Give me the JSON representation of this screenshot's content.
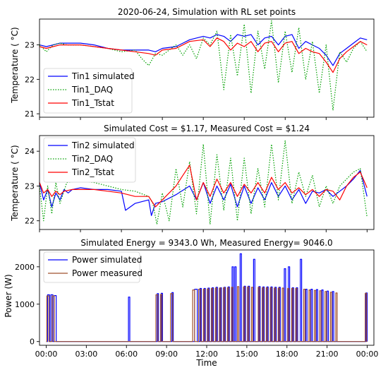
{
  "chart_data": [
    {
      "type": "line",
      "title": "2020-06-24, Simulation with RL set points",
      "ylabel": "Temperature ( °C)",
      "xlim": [
        0,
        24.5
      ],
      "ylim": [
        20.9,
        23.75
      ],
      "yticks": [
        21,
        22,
        23
      ],
      "legend_position": "lower-left",
      "series": [
        {
          "name": "Tin1 simulated",
          "color": "#0000ff",
          "style": "solid",
          "x": [
            0,
            0.5,
            1,
            1.5,
            2,
            3,
            4,
            5,
            6,
            7,
            8,
            8.5,
            9,
            10,
            11,
            12,
            12.5,
            13,
            13.5,
            14,
            14.5,
            15,
            15.5,
            16,
            16.5,
            17,
            17.5,
            18,
            18.5,
            19,
            19.5,
            20,
            20.5,
            21,
            21.5,
            22,
            22.5,
            23,
            23.5,
            24
          ],
          "y": [
            23.0,
            22.95,
            23.0,
            23.05,
            23.05,
            23.05,
            23.0,
            22.9,
            22.85,
            22.85,
            22.85,
            22.8,
            22.9,
            22.95,
            23.15,
            23.25,
            23.2,
            23.3,
            23.25,
            23.1,
            23.3,
            23.25,
            23.3,
            23.0,
            23.2,
            23.25,
            23.0,
            23.25,
            23.3,
            22.9,
            23.1,
            23.0,
            22.9,
            22.7,
            22.4,
            22.75,
            22.9,
            23.05,
            23.2,
            23.15
          ]
        },
        {
          "name": "Tin1_DAQ",
          "color": "#00a000",
          "style": "dotted",
          "x": [
            0,
            0.5,
            1,
            1.5,
            2,
            3,
            4,
            5,
            6,
            7,
            7.5,
            8,
            8.5,
            9,
            10,
            10.5,
            11,
            11.5,
            12,
            12.5,
            13,
            13.5,
            14,
            14.5,
            15,
            15.5,
            16,
            16.5,
            17,
            17.5,
            18,
            18.5,
            19,
            19.5,
            20,
            20.5,
            21,
            21.5,
            22,
            22.5,
            23,
            23.5,
            24
          ],
          "y": [
            23.0,
            22.8,
            23.0,
            23.05,
            23.0,
            23.0,
            22.95,
            22.9,
            22.8,
            22.85,
            22.6,
            22.4,
            22.75,
            22.7,
            23.0,
            22.7,
            23.0,
            22.6,
            23.2,
            23.0,
            23.4,
            21.7,
            23.3,
            22.1,
            23.6,
            21.6,
            23.4,
            22.3,
            23.7,
            21.9,
            23.4,
            22.2,
            23.5,
            22.0,
            23.1,
            21.6,
            23.0,
            21.1,
            22.8,
            22.5,
            22.9,
            23.1,
            22.8
          ]
        },
        {
          "name": "Tin1_Tstat",
          "color": "#ff0000",
          "style": "solid",
          "x": [
            0,
            0.5,
            1,
            1.5,
            2,
            3,
            4,
            5,
            6,
            7,
            8,
            8.5,
            9,
            10,
            11,
            12,
            12.5,
            13,
            13.5,
            14,
            14.5,
            15,
            15.5,
            16,
            16.5,
            17,
            17.5,
            18,
            18.5,
            19,
            19.5,
            20,
            20.5,
            21,
            21.5,
            22,
            22.5,
            23,
            23.5,
            24
          ],
          "y": [
            22.95,
            22.9,
            22.95,
            23.0,
            23.0,
            23.0,
            22.95,
            22.9,
            22.85,
            22.8,
            22.75,
            22.7,
            22.85,
            22.9,
            23.1,
            23.15,
            22.95,
            23.2,
            23.1,
            22.85,
            23.05,
            22.95,
            23.1,
            22.8,
            23.05,
            23.1,
            22.8,
            23.05,
            23.1,
            22.75,
            22.9,
            22.8,
            22.75,
            22.5,
            22.2,
            22.6,
            22.8,
            22.95,
            23.1,
            23.0
          ]
        }
      ]
    },
    {
      "type": "line",
      "title": "Simulated Cost = $1.17, Measured Cost = $1.24",
      "ylabel": "Temperature ( °C)",
      "xlim": [
        0,
        24.5
      ],
      "ylim": [
        21.75,
        24.45
      ],
      "yticks": [
        22,
        23,
        24
      ],
      "legend_position": "upper-left",
      "series": [
        {
          "name": "Tin2 simulated",
          "color": "#0000ff",
          "style": "solid",
          "x": [
            0,
            0.3,
            0.6,
            0.9,
            1.2,
            1.5,
            1.8,
            2.1,
            2.4,
            3,
            4,
            5,
            6,
            6.3,
            7,
            8,
            8.2,
            8.5,
            9,
            10,
            11,
            11.5,
            12,
            12.5,
            13,
            13.5,
            14,
            14.5,
            15,
            15.5,
            16,
            16.5,
            17,
            17.5,
            18,
            18.5,
            19,
            19.5,
            20,
            20.5,
            21,
            21.5,
            22,
            22.5,
            23,
            23.5,
            24
          ],
          "y": [
            23.1,
            22.6,
            22.9,
            22.4,
            22.8,
            22.6,
            22.9,
            22.8,
            22.9,
            22.95,
            22.9,
            22.9,
            22.85,
            22.3,
            22.5,
            22.6,
            22.15,
            22.5,
            22.55,
            22.75,
            23.0,
            22.6,
            23.1,
            22.5,
            23.0,
            22.6,
            23.05,
            22.4,
            23.0,
            22.5,
            22.95,
            22.6,
            23.1,
            22.7,
            23.0,
            22.6,
            22.9,
            22.5,
            22.85,
            22.8,
            22.9,
            22.7,
            22.85,
            23.0,
            23.2,
            23.45,
            22.7
          ]
        },
        {
          "name": "Tin2_DAQ",
          "color": "#00a000",
          "style": "dotted",
          "x": [
            0,
            0.3,
            0.6,
            0.9,
            1.2,
            1.5,
            2,
            3,
            4,
            5,
            6,
            7,
            8,
            8.3,
            8.6,
            9,
            9.5,
            10,
            10.5,
            11,
            11.5,
            12,
            12.5,
            13,
            13.5,
            14,
            14.5,
            15,
            15.5,
            16,
            16.5,
            17,
            17.5,
            18,
            18.5,
            19,
            19.5,
            20,
            20.5,
            21,
            21.5,
            22,
            22.5,
            23,
            23.5,
            24
          ],
          "y": [
            23.0,
            22.0,
            23.0,
            22.2,
            23.1,
            22.5,
            23.1,
            23.15,
            23.1,
            23.0,
            22.9,
            22.85,
            22.7,
            22.5,
            21.9,
            22.8,
            22.0,
            23.5,
            22.4,
            23.7,
            22.2,
            24.2,
            21.9,
            23.9,
            22.3,
            23.8,
            22.0,
            23.8,
            22.2,
            23.5,
            22.4,
            24.2,
            22.6,
            24.3,
            22.5,
            23.4,
            22.7,
            23.3,
            22.4,
            23.0,
            22.5,
            23.0,
            23.2,
            23.4,
            23.5,
            22.1
          ]
        },
        {
          "name": "Tin2_Tstat",
          "color": "#ff0000",
          "style": "solid",
          "x": [
            0,
            0.3,
            0.6,
            0.9,
            1.2,
            1.5,
            1.8,
            2.4,
            3,
            4,
            5,
            6,
            7,
            8,
            8.5,
            9,
            10,
            10.5,
            11,
            11.5,
            12,
            12.5,
            13,
            13.5,
            14,
            14.5,
            15,
            15.5,
            16,
            16.5,
            17,
            17.5,
            18,
            18.5,
            19,
            19.5,
            20,
            20.5,
            21,
            21.5,
            22,
            22.5,
            23,
            23.5,
            24
          ],
          "y": [
            23.1,
            22.8,
            22.9,
            22.7,
            22.85,
            22.75,
            22.85,
            22.9,
            22.9,
            22.9,
            22.85,
            22.8,
            22.7,
            22.7,
            22.4,
            22.6,
            23.0,
            23.3,
            23.6,
            22.6,
            23.1,
            22.7,
            23.2,
            22.8,
            23.1,
            22.7,
            23.05,
            22.8,
            23.1,
            22.8,
            23.25,
            22.9,
            23.1,
            22.8,
            22.95,
            22.75,
            22.9,
            22.7,
            22.9,
            22.85,
            22.6,
            23.0,
            23.25,
            23.4,
            22.95
          ]
        }
      ]
    },
    {
      "type": "line",
      "title": "Simulated Energy = 9343.0 Wh, Measured Energy= 9046.0",
      "ylabel": "Power (W)",
      "xlabel": "Time",
      "xlim": [
        -0.5,
        24.5
      ],
      "ylim": [
        -100,
        2450
      ],
      "yticks": [
        0,
        1000,
        2000
      ],
      "xtick_labels": [
        "00:00",
        "03:00",
        "06:00",
        "09:00",
        "12:00",
        "15:00",
        "18:00",
        "21:00",
        "00:00"
      ],
      "xtick_hours": [
        0,
        3,
        6,
        9,
        12,
        15,
        18,
        21,
        24
      ],
      "legend_position": "upper-left",
      "series": [
        {
          "name": "Power simulated",
          "color": "#0000ff",
          "style": "pulses",
          "pulses": [
            [
              0.1,
              0.25,
              1250
            ],
            [
              0.35,
              0.5,
              1250
            ],
            [
              0.6,
              0.75,
              1230
            ],
            [
              6.15,
              6.25,
              1190
            ],
            [
              8.3,
              8.4,
              1280
            ],
            [
              8.6,
              8.7,
              1290
            ],
            [
              9.4,
              9.5,
              1310
            ],
            [
              11.1,
              11.3,
              1400
            ],
            [
              11.5,
              11.6,
              1420
            ],
            [
              11.8,
              11.9,
              1420
            ],
            [
              12.1,
              12.2,
              1430
            ],
            [
              12.4,
              12.5,
              1440
            ],
            [
              12.7,
              12.8,
              1450
            ],
            [
              13.0,
              13.1,
              1440
            ],
            [
              13.3,
              13.4,
              1450
            ],
            [
              13.6,
              13.7,
              1460
            ],
            [
              13.9,
              14.0,
              2000
            ],
            [
              14.1,
              14.2,
              2000
            ],
            [
              14.5,
              14.6,
              2350
            ],
            [
              14.8,
              14.9,
              1480
            ],
            [
              15.1,
              15.2,
              1480
            ],
            [
              15.5,
              15.6,
              2200
            ],
            [
              15.9,
              16.0,
              1470
            ],
            [
              16.2,
              16.3,
              1460
            ],
            [
              16.5,
              16.6,
              1460
            ],
            [
              16.8,
              16.9,
              1460
            ],
            [
              17.1,
              17.2,
              1450
            ],
            [
              17.4,
              17.5,
              1450
            ],
            [
              17.8,
              17.9,
              1950
            ],
            [
              18.1,
              18.2,
              2000
            ],
            [
              18.4,
              18.5,
              1440
            ],
            [
              18.7,
              18.8,
              1440
            ],
            [
              19.0,
              19.1,
              2200
            ],
            [
              19.4,
              19.5,
              1400
            ],
            [
              19.8,
              19.9,
              1400
            ],
            [
              20.2,
              20.3,
              1390
            ],
            [
              20.6,
              20.7,
              1380
            ],
            [
              21.0,
              21.1,
              1350
            ],
            [
              21.4,
              21.5,
              1340
            ],
            [
              23.9,
              24.0,
              1300
            ]
          ]
        },
        {
          "name": "Power measured",
          "color": "#a0522d",
          "style": "pulses",
          "pulses": [
            [
              0.05,
              0.2,
              1220
            ],
            [
              0.45,
              0.6,
              1220
            ],
            [
              8.2,
              8.35,
              1250
            ],
            [
              8.55,
              8.65,
              1260
            ],
            [
              9.3,
              9.45,
              1280
            ],
            [
              10.95,
              11.1,
              1380
            ],
            [
              11.4,
              11.55,
              1400
            ],
            [
              11.75,
              11.85,
              1400
            ],
            [
              12.05,
              12.15,
              1410
            ],
            [
              12.35,
              12.45,
              1420
            ],
            [
              12.65,
              12.75,
              1430
            ],
            [
              12.95,
              13.05,
              1430
            ],
            [
              13.25,
              13.35,
              1440
            ],
            [
              13.55,
              13.65,
              1440
            ],
            [
              13.85,
              13.95,
              1450
            ],
            [
              14.3,
              14.4,
              1470
            ],
            [
              14.75,
              14.85,
              1460
            ],
            [
              15.05,
              15.15,
              1460
            ],
            [
              15.35,
              15.45,
              1450
            ],
            [
              15.85,
              15.95,
              1450
            ],
            [
              16.15,
              16.25,
              1440
            ],
            [
              16.45,
              16.55,
              1440
            ],
            [
              16.75,
              16.85,
              1440
            ],
            [
              17.05,
              17.15,
              1430
            ],
            [
              17.35,
              17.45,
              1430
            ],
            [
              17.65,
              17.75,
              1430
            ],
            [
              18.05,
              18.15,
              1420
            ],
            [
              18.35,
              18.45,
              1420
            ],
            [
              18.65,
              18.75,
              1420
            ],
            [
              19.25,
              19.35,
              1400
            ],
            [
              19.65,
              19.75,
              1380
            ],
            [
              20.05,
              20.15,
              1370
            ],
            [
              20.45,
              20.55,
              1360
            ],
            [
              20.85,
              20.95,
              1340
            ],
            [
              21.25,
              21.35,
              1320
            ],
            [
              21.65,
              21.75,
              1300
            ],
            [
              23.85,
              23.95,
              1290
            ]
          ]
        }
      ]
    }
  ]
}
